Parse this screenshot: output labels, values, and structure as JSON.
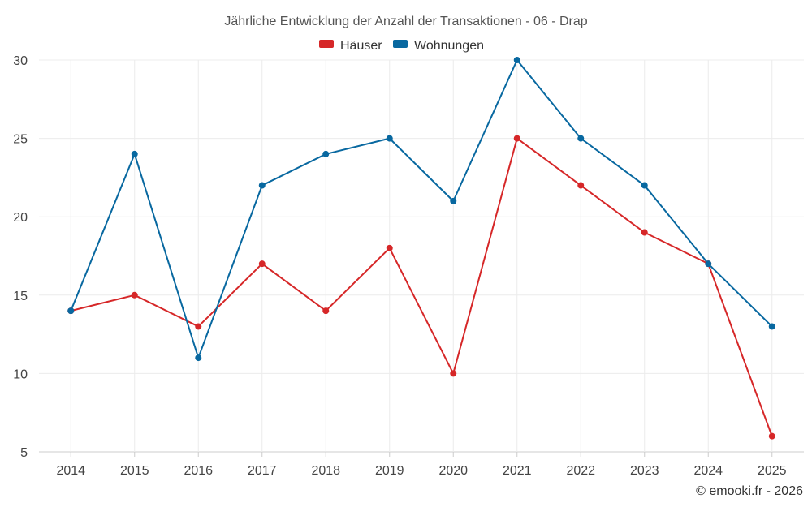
{
  "chart_data": {
    "type": "line",
    "title": "Jährliche Entwicklung der Anzahl der Transaktionen - 06 - Drap",
    "xlabel": "",
    "ylabel": "",
    "categories": [
      "2014",
      "2015",
      "2016",
      "2017",
      "2018",
      "2019",
      "2020",
      "2021",
      "2022",
      "2023",
      "2024",
      "2025"
    ],
    "ylim": [
      5,
      30
    ],
    "yticks": [
      5,
      10,
      15,
      20,
      25,
      30
    ],
    "grid": true,
    "legend_position": "top-center",
    "series": [
      {
        "name": "Häuser",
        "color": "#d62728",
        "values": [
          14,
          15,
          13,
          17,
          14,
          18,
          10,
          25,
          22,
          19,
          17,
          6
        ]
      },
      {
        "name": "Wohnungen",
        "color": "#0868a0",
        "values": [
          14,
          24,
          11,
          22,
          24,
          25,
          21,
          30,
          25,
          22,
          17,
          13
        ]
      }
    ],
    "credit": "© emooki.fr - 2026"
  }
}
